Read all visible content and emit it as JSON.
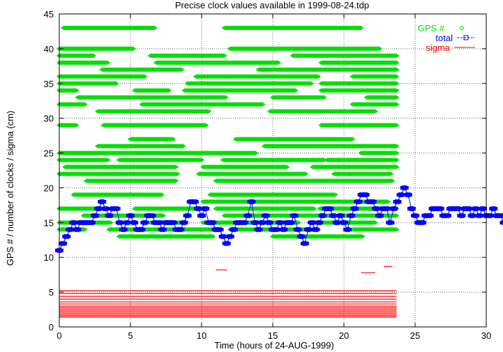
{
  "chart_data": {
    "type": "scatter",
    "title": "Precise clock values available in 1999-08-24.tdp",
    "xlabel": "Time (hours of 24-AUG-1999)",
    "ylabel": "GPS # / number of clocks / sigma (cm)",
    "xlim": [
      0,
      30
    ],
    "ylim": [
      0,
      45
    ],
    "x_ticks": [
      0,
      5,
      10,
      15,
      20,
      25,
      30
    ],
    "y_ticks": [
      0,
      5,
      10,
      15,
      20,
      25,
      30,
      35,
      40,
      45
    ],
    "grid": true,
    "legend_position": "top-right",
    "colors": {
      "gps": "#00e000",
      "total": "#0000ff",
      "sigma": "#ff0000"
    },
    "series": [
      {
        "name": "GPS #",
        "marker": "diamond",
        "segments": [
          {
            "prn": 43,
            "start": 0.3,
            "end": 6.7
          },
          {
            "prn": 43,
            "start": 11.6,
            "end": 21.2
          },
          {
            "prn": 40,
            "start": 0.0,
            "end": 5.2
          },
          {
            "prn": 40,
            "start": 12.0,
            "end": 22.5
          },
          {
            "prn": 39,
            "start": 0.0,
            "end": 2.4
          },
          {
            "prn": 39,
            "start": 6.4,
            "end": 11.6
          },
          {
            "prn": 39,
            "start": 16.4,
            "end": 23.7
          },
          {
            "prn": 38,
            "start": 0.0,
            "end": 3.4
          },
          {
            "prn": 38,
            "start": 6.8,
            "end": 15.4
          },
          {
            "prn": 38,
            "start": 18.4,
            "end": 23.7
          },
          {
            "prn": 37,
            "start": 3.0,
            "end": 8.6
          },
          {
            "prn": 37,
            "start": 14.0,
            "end": 23.7
          },
          {
            "prn": 36,
            "start": 0.0,
            "end": 6.0
          },
          {
            "prn": 36,
            "start": 9.6,
            "end": 18.2
          },
          {
            "prn": 36,
            "start": 20.6,
            "end": 23.7
          },
          {
            "prn": 35,
            "start": 0.0,
            "end": 4.0
          },
          {
            "prn": 35,
            "start": 9.0,
            "end": 17.7
          },
          {
            "prn": 35,
            "start": 18.4,
            "end": 23.7
          },
          {
            "prn": 34,
            "start": 0.0,
            "end": 1.2
          },
          {
            "prn": 34,
            "start": 5.3,
            "end": 7.7
          },
          {
            "prn": 34,
            "start": 8.8,
            "end": 16.6
          },
          {
            "prn": 34,
            "start": 18.4,
            "end": 23.7
          },
          {
            "prn": 33,
            "start": 1.3,
            "end": 11.7
          },
          {
            "prn": 33,
            "start": 15.0,
            "end": 18.6
          },
          {
            "prn": 33,
            "start": 21.6,
            "end": 23.7
          },
          {
            "prn": 32,
            "start": 0.0,
            "end": 1.8
          },
          {
            "prn": 32,
            "start": 5.8,
            "end": 14.3
          },
          {
            "prn": 32,
            "start": 20.6,
            "end": 23.7
          },
          {
            "prn": 31,
            "start": 2.7,
            "end": 10.5
          },
          {
            "prn": 31,
            "start": 14.8,
            "end": 22.2
          },
          {
            "prn": 29,
            "start": 0.0,
            "end": 1.2
          },
          {
            "prn": 29,
            "start": 3.1,
            "end": 10.3
          },
          {
            "prn": 29,
            "start": 18.4,
            "end": 23.7
          },
          {
            "prn": 27,
            "start": 5.0,
            "end": 8.0
          },
          {
            "prn": 27,
            "start": 12.4,
            "end": 20.6
          },
          {
            "prn": 26,
            "start": 2.7,
            "end": 8.7
          },
          {
            "prn": 26,
            "start": 14.4,
            "end": 23.7
          },
          {
            "prn": 25,
            "start": 0.0,
            "end": 13.8
          },
          {
            "prn": 25,
            "start": 21.2,
            "end": 23.7
          },
          {
            "prn": 24,
            "start": 0.0,
            "end": 3.4
          },
          {
            "prn": 24,
            "start": 4.2,
            "end": 10.0
          },
          {
            "prn": 24,
            "start": 11.5,
            "end": 18.6
          },
          {
            "prn": 24,
            "start": 18.8,
            "end": 23.7
          },
          {
            "prn": 23,
            "start": 0.4,
            "end": 8.2
          },
          {
            "prn": 23,
            "start": 10.1,
            "end": 16.0
          },
          {
            "prn": 23,
            "start": 17.8,
            "end": 23.7
          },
          {
            "prn": 22,
            "start": 0.0,
            "end": 8.3
          },
          {
            "prn": 22,
            "start": 9.8,
            "end": 17.3
          },
          {
            "prn": 22,
            "start": 19.3,
            "end": 23.3
          },
          {
            "prn": 21,
            "start": 1.9,
            "end": 8.2
          },
          {
            "prn": 21,
            "start": 11.0,
            "end": 23.4
          },
          {
            "prn": 19,
            "start": 1.0,
            "end": 7.2
          },
          {
            "prn": 19,
            "start": 10.6,
            "end": 19.4
          },
          {
            "prn": 18,
            "start": 10.1,
            "end": 23.1
          },
          {
            "prn": 17,
            "start": 0.0,
            "end": 3.2
          },
          {
            "prn": 17,
            "start": 5.3,
            "end": 10.2
          },
          {
            "prn": 17,
            "start": 11.0,
            "end": 17.9
          },
          {
            "prn": 17,
            "start": 18.3,
            "end": 23.7
          },
          {
            "prn": 16,
            "start": 1.7,
            "end": 7.3
          },
          {
            "prn": 16,
            "start": 11.6,
            "end": 19.1
          },
          {
            "prn": 16,
            "start": 19.6,
            "end": 23.7
          },
          {
            "prn": 15,
            "start": 0.0,
            "end": 3.6
          },
          {
            "prn": 15,
            "start": 6.4,
            "end": 8.7
          },
          {
            "prn": 15,
            "start": 10.1,
            "end": 16.8
          },
          {
            "prn": 15,
            "start": 17.6,
            "end": 22.2
          },
          {
            "prn": 14,
            "start": 0.0,
            "end": 1.8
          },
          {
            "prn": 14,
            "start": 3.5,
            "end": 11.2
          },
          {
            "prn": 14,
            "start": 12.0,
            "end": 14.8
          },
          {
            "prn": 14,
            "start": 15.6,
            "end": 18.2
          },
          {
            "prn": 14,
            "start": 20.6,
            "end": 23.7
          },
          {
            "prn": 13,
            "start": 4.2,
            "end": 10.8
          },
          {
            "prn": 13,
            "start": 15.0,
            "end": 21.3
          }
        ]
      },
      {
        "name": "total",
        "marker": "square",
        "x_start": 0,
        "x_end": 23.75,
        "step": 0.25,
        "values": [
          11,
          12,
          13,
          14,
          15,
          14,
          15,
          15,
          15,
          15,
          16,
          17,
          18,
          17,
          16,
          17,
          17,
          15,
          14,
          15,
          16,
          15,
          14,
          14,
          15,
          16,
          16,
          15,
          15,
          14,
          15,
          15,
          15,
          14,
          14,
          15,
          16,
          18,
          18,
          17,
          16,
          17,
          15,
          15,
          14,
          14,
          13,
          12,
          13,
          14,
          15,
          15,
          15,
          16,
          18,
          15,
          14,
          15,
          16,
          15,
          14,
          14,
          15,
          14,
          15,
          15,
          16,
          14,
          13,
          12,
          14,
          15,
          14,
          15,
          16,
          17,
          17,
          16,
          15,
          16,
          15,
          14,
          16,
          17,
          18,
          19,
          19,
          18,
          18,
          17,
          16,
          17,
          17,
          15,
          17,
          18,
          19,
          20,
          19,
          17,
          16,
          15,
          15,
          16,
          16,
          17,
          17,
          17,
          16,
          16,
          17,
          17,
          17,
          16,
          17,
          17,
          16,
          17,
          16,
          17,
          16,
          16,
          17,
          16,
          16,
          15,
          15,
          16,
          16,
          16,
          17,
          17,
          17,
          17,
          16,
          16,
          15,
          15,
          14,
          14,
          13,
          12,
          11,
          10,
          10
        ]
      },
      {
        "name": "sigma",
        "marker": "line",
        "lines": [
          {
            "x0": 0.0,
            "x1": 23.7,
            "y": 5.2
          },
          {
            "x0": 0.0,
            "x1": 23.7,
            "y": 4.8
          },
          {
            "x0": 0.0,
            "x1": 23.7,
            "y": 4.4
          },
          {
            "x0": 0.0,
            "x1": 23.7,
            "y": 4.0
          },
          {
            "x0": 0.0,
            "x1": 23.7,
            "y": 3.6
          },
          {
            "x0": 0.0,
            "x1": 23.7,
            "y": 3.3
          },
          {
            "x0": 0.0,
            "x1": 23.7,
            "y": 3.0
          },
          {
            "x0": 0.0,
            "x1": 23.7,
            "y": 2.8
          },
          {
            "x0": 0.0,
            "x1": 23.7,
            "y": 2.6
          },
          {
            "x0": 0.0,
            "x1": 23.7,
            "y": 2.4
          },
          {
            "x0": 0.0,
            "x1": 23.7,
            "y": 2.2
          },
          {
            "x0": 0.0,
            "x1": 23.7,
            "y": 2.0
          },
          {
            "x0": 0.0,
            "x1": 23.7,
            "y": 1.8
          },
          {
            "x0": 0.0,
            "x1": 23.7,
            "y": 1.6
          },
          {
            "x0": 0.0,
            "x1": 23.7,
            "y": 1.4
          },
          {
            "x0": 11.0,
            "x1": 11.8,
            "y": 8.2
          },
          {
            "x0": 22.8,
            "x1": 23.4,
            "y": 8.7
          },
          {
            "x0": 21.2,
            "x1": 22.2,
            "y": 7.8
          }
        ]
      }
    ]
  }
}
